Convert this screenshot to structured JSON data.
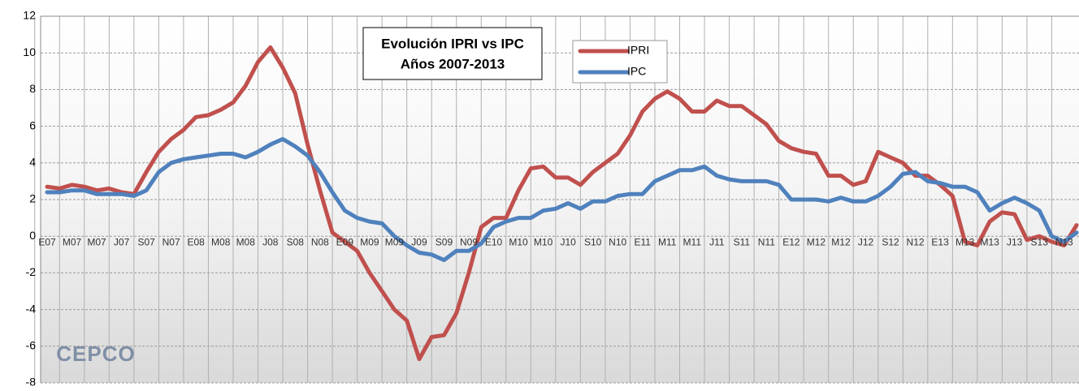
{
  "chart_data": {
    "type": "line",
    "title": "Evolución IPRI vs IPC",
    "subtitle": "Años 2007-2013",
    "logo_text": "CEPCO",
    "categories": [
      "E07",
      null,
      "M07",
      null,
      "M07",
      null,
      "J07",
      null,
      "S07",
      null,
      "N07",
      null,
      "E08",
      null,
      "M08",
      null,
      "M08",
      null,
      "J08",
      null,
      "S08",
      null,
      "N08",
      null,
      "E09",
      null,
      "M09",
      null,
      "M09",
      null,
      "J09",
      null,
      "S09",
      null,
      "N09",
      null,
      "E10",
      null,
      "M10",
      null,
      "M10",
      null,
      "J10",
      null,
      "S10",
      null,
      "N10",
      null,
      "E11",
      null,
      "M11",
      null,
      "M11",
      null,
      "J11",
      null,
      "S11",
      null,
      "N11",
      null,
      "E12",
      null,
      "M12",
      null,
      "M12",
      null,
      "J12",
      null,
      "S12",
      null,
      "N12",
      null,
      "E13",
      null,
      "M13",
      null,
      "M13",
      null,
      "J13",
      null,
      "S13",
      null,
      "N13",
      null
    ],
    "series": [
      {
        "name": "IPRI",
        "color": "#c0504d",
        "values": [
          2.7,
          2.6,
          2.8,
          2.7,
          2.5,
          2.6,
          2.4,
          2.3,
          3.5,
          4.6,
          5.3,
          5.8,
          6.5,
          6.6,
          6.9,
          7.3,
          8.2,
          9.5,
          10.3,
          9.2,
          7.8,
          5.0,
          2.5,
          0.2,
          -0.3,
          -0.8,
          -2.0,
          -3.0,
          -4.0,
          -4.6,
          -6.7,
          -5.5,
          -5.4,
          -4.2,
          -2.0,
          0.5,
          1.0,
          1.0,
          2.5,
          3.7,
          3.8,
          3.2,
          3.2,
          2.8,
          3.5,
          4.0,
          4.5,
          5.5,
          6.8,
          7.5,
          7.9,
          7.5,
          6.8,
          6.8,
          7.4,
          7.1,
          7.1,
          6.6,
          6.1,
          5.2,
          4.8,
          4.6,
          4.5,
          3.3,
          3.3,
          2.8,
          3.0,
          4.6,
          4.3,
          4.0,
          3.3,
          3.3,
          2.8,
          2.2,
          -0.3,
          -0.5,
          0.8,
          1.3,
          1.2,
          -0.2,
          0.0,
          -0.3,
          -0.5,
          0.6
        ]
      },
      {
        "name": "IPC",
        "color": "#4f81bd",
        "values": [
          2.4,
          2.4,
          2.5,
          2.5,
          2.3,
          2.3,
          2.3,
          2.2,
          2.5,
          3.5,
          4.0,
          4.2,
          4.3,
          4.4,
          4.5,
          4.5,
          4.3,
          4.6,
          5.0,
          5.3,
          4.9,
          4.4,
          3.5,
          2.4,
          1.4,
          1.0,
          0.8,
          0.7,
          0.0,
          -0.5,
          -0.9,
          -1.0,
          -1.3,
          -0.8,
          -0.8,
          -0.4,
          0.5,
          0.8,
          1.0,
          1.0,
          1.4,
          1.5,
          1.8,
          1.5,
          1.9,
          1.9,
          2.2,
          2.3,
          2.3,
          3.0,
          3.3,
          3.6,
          3.6,
          3.8,
          3.3,
          3.1,
          3.0,
          3.0,
          3.0,
          2.8,
          2.0,
          2.0,
          2.0,
          1.9,
          2.1,
          1.9,
          1.9,
          2.2,
          2.7,
          3.4,
          3.5,
          3.0,
          2.9,
          2.7,
          2.7,
          2.4,
          1.4,
          1.8,
          2.1,
          1.8,
          1.4,
          0.0,
          -0.3,
          0.2
        ]
      }
    ],
    "ylim": [
      -8,
      12
    ],
    "yticks": [
      -8,
      -6,
      -4,
      -2,
      0,
      2,
      4,
      6,
      8,
      10,
      12
    ],
    "grid": true
  }
}
